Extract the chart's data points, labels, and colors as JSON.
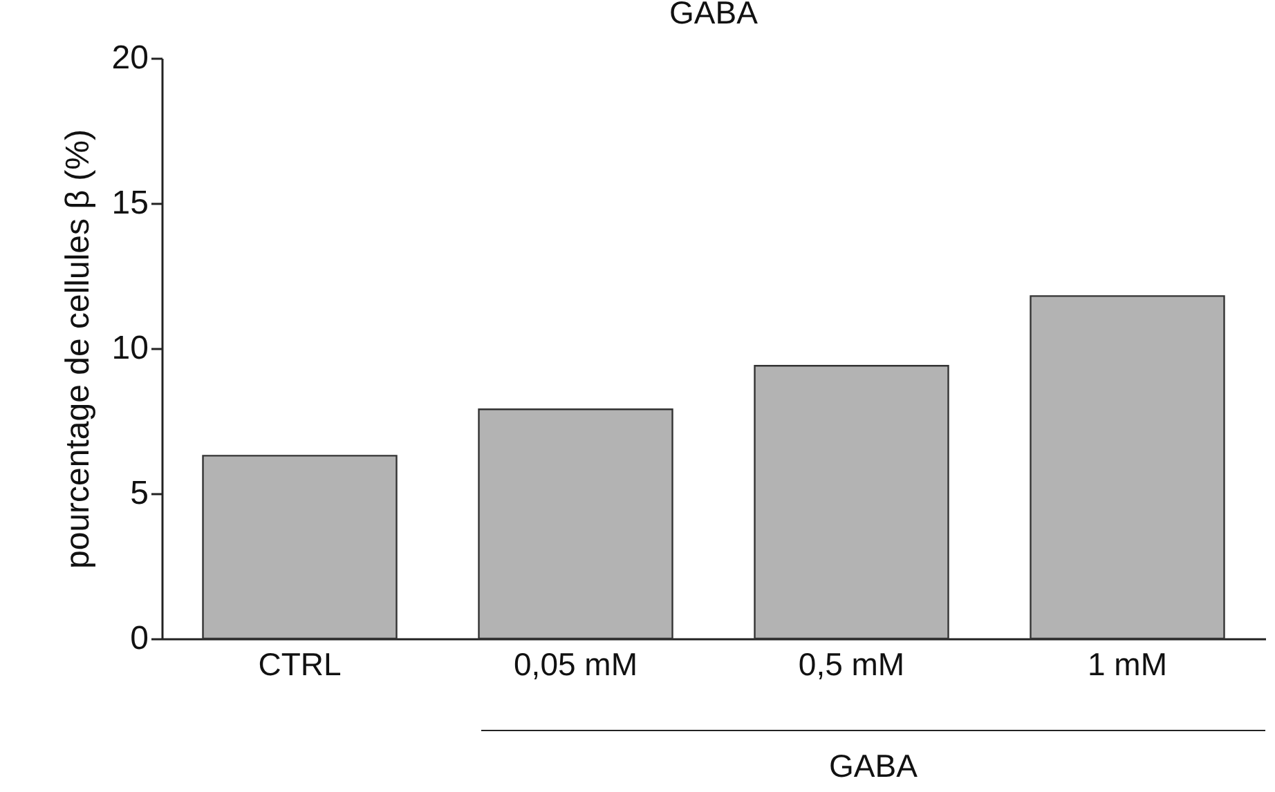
{
  "chart_data": {
    "type": "bar",
    "title": "GABA",
    "ylabel": "pourcentage de cellules β (%)",
    "categories": [
      "CTRL",
      "0,05 mM",
      "0,5 mM",
      "1 mM"
    ],
    "values": [
      6.3,
      7.9,
      9.4,
      11.8
    ],
    "color": "#b3b3b3",
    "ylim": [
      0,
      20
    ],
    "yticks": [
      0,
      5,
      10,
      15,
      20
    ],
    "grid": false,
    "annotations": [
      "GABA"
    ]
  }
}
